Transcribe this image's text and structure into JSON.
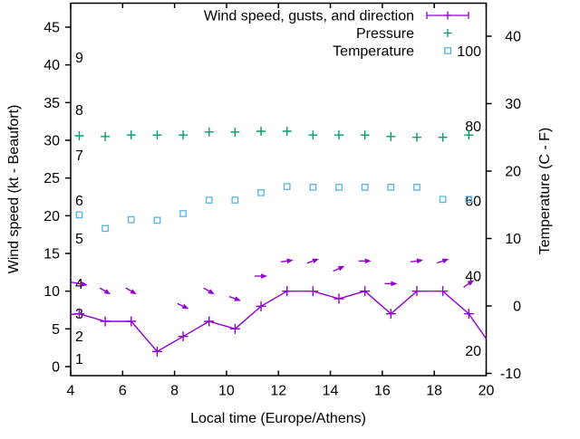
{
  "chart_data": {
    "type": "line",
    "xlabel": "Local time (Europe/Athens)",
    "ylabel": "Wind speed (kt - Beaufort)",
    "y2label": "Temperature (C - F)",
    "x": [
      4.33,
      5.33,
      6.33,
      7.33,
      8.33,
      9.33,
      10.33,
      11.33,
      12.33,
      13.33,
      14.33,
      15.33,
      16.33,
      17.33,
      18.33,
      19.33
    ],
    "xticks": [
      4,
      6,
      8,
      10,
      12,
      14,
      16,
      18,
      20
    ],
    "yticks": [
      0,
      5,
      10,
      15,
      20,
      25,
      30,
      35,
      40,
      45
    ],
    "y2ticks": [
      -10,
      0,
      10,
      20,
      30,
      40
    ],
    "xlim": [
      4,
      20
    ],
    "ylim": [
      -1.2,
      48.2
    ],
    "y2lim": [
      -10.3,
      44.9
    ],
    "grid": false,
    "legend_position": "top-right-inside",
    "series": [
      {
        "name": "Wind speed, gusts, and direction",
        "color": "#9400d3",
        "marker": "plus",
        "axis": "left",
        "values": [
          7,
          6,
          6,
          2,
          4,
          6,
          5,
          8,
          10,
          10,
          9,
          10,
          7,
          10,
          10,
          7
        ],
        "edge_points": {
          "left": [
            4.0,
            6.9
          ],
          "right": [
            20.0,
            3.7
          ]
        },
        "gust_values": [
          11,
          10,
          10,
          null,
          8,
          10,
          9,
          12,
          14,
          14,
          13,
          14,
          11,
          14,
          14,
          11
        ],
        "gust_arrow_angles_deg": [
          10,
          30,
          30,
          null,
          25,
          30,
          20,
          0,
          -8,
          -20,
          -25,
          0,
          0,
          -8,
          -18,
          -35
        ]
      },
      {
        "name": "Pressure",
        "color": "#009e73",
        "marker": "plus",
        "axis": "left",
        "values": [
          30.6,
          30.5,
          30.7,
          30.7,
          30.7,
          31.1,
          31.1,
          31.2,
          31.2,
          30.7,
          30.7,
          30.7,
          30.5,
          30.4,
          30.4,
          30.7
        ]
      },
      {
        "name": "Temperature",
        "color": "#56b4e9",
        "marker": "open-square",
        "axis": "right",
        "values_c": [
          13.5,
          11.5,
          12.8,
          12.7,
          13.7,
          15.7,
          15.7,
          16.8,
          17.7,
          17.6,
          17.6,
          17.6,
          17.6,
          17.6,
          15.8,
          15.8
        ]
      }
    ],
    "beaufort_scale_labels": [
      {
        "label": "1",
        "kt": 1
      },
      {
        "label": "2",
        "kt": 4
      },
      {
        "label": "3",
        "kt": 7
      },
      {
        "label": "4",
        "kt": 11
      },
      {
        "label": "5",
        "kt": 17
      },
      {
        "label": "6",
        "kt": 22
      },
      {
        "label": "7",
        "kt": 28
      },
      {
        "label": "8",
        "kt": 34
      },
      {
        "label": "9",
        "kt": 41
      }
    ],
    "fahrenheit_scale_labels": [
      "20",
      "40",
      "60",
      "80",
      "100"
    ],
    "fahrenheit_values": [
      20,
      40,
      60,
      80,
      100
    ]
  }
}
